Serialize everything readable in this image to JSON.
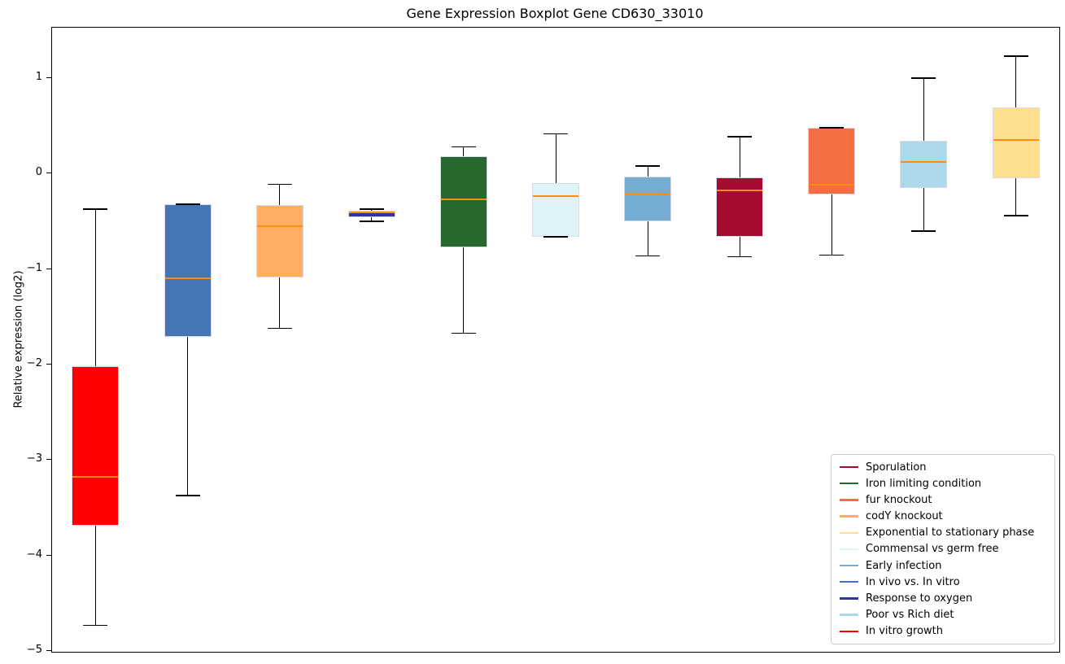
{
  "chart_data": {
    "type": "boxplot",
    "title": "Gene Expression Boxplot Gene CD630_33010",
    "xlabel": "",
    "ylabel": "Relative expression (log2)",
    "ylim": [
      -5.009,
      1.528
    ],
    "xlim": [
      0.527,
      11.473
    ],
    "yticks": [
      1,
      0,
      -1,
      -2,
      -3,
      -4,
      -5
    ],
    "xticks_visible": false,
    "grid": false,
    "box_width": 0.51,
    "cap_width": 0.26,
    "median_color": "#ff8c0e",
    "whisker_color": "#000000",
    "box_edge_color": "#d9d9e8",
    "series": [
      {
        "position": 1,
        "name": "In vitro growth",
        "color": "#ff0000",
        "whisker_low": -4.73,
        "q1": -3.69,
        "median": -3.18,
        "q3": -2.02,
        "whisker_high": -0.37
      },
      {
        "position": 2,
        "name": "In vivo vs. In vitro",
        "color": "#4575b4",
        "whisker_low": -3.37,
        "q1": -1.71,
        "median": -1.1,
        "q3": -0.32,
        "whisker_high": -0.32
      },
      {
        "position": 3,
        "name": "codY knockout",
        "color": "#fdae61",
        "whisker_low": -1.62,
        "q1": -1.09,
        "median": -0.55,
        "q3": -0.33,
        "whisker_high": -0.11
      },
      {
        "position": 4,
        "name": "Response to oxygen",
        "color": "#313695",
        "whisker_low": -0.5,
        "q1": -0.46,
        "median": -0.41,
        "q3": -0.39,
        "whisker_high": -0.37
      },
      {
        "position": 5,
        "name": "Iron limiting condition",
        "color": "#27682c",
        "whisker_low": -1.67,
        "q1": -0.77,
        "median": -0.27,
        "q3": 0.18,
        "whisker_high": 0.28
      },
      {
        "position": 6,
        "name": "Commensal vs germ free",
        "color": "#e0f3f8",
        "whisker_low": -0.66,
        "q1": -0.66,
        "median": -0.24,
        "q3": -0.1,
        "whisker_high": 0.42
      },
      {
        "position": 7,
        "name": "Early infection",
        "color": "#74add1",
        "whisker_low": -0.86,
        "q1": -0.5,
        "median": -0.21,
        "q3": -0.03,
        "whisker_high": 0.08
      },
      {
        "position": 8,
        "name": "Sporulation",
        "color": "#a50b2e",
        "whisker_low": -0.87,
        "q1": -0.66,
        "median": -0.18,
        "q3": -0.04,
        "whisker_high": 0.39
      },
      {
        "position": 9,
        "name": "fur knockout",
        "color": "#f46d43",
        "whisker_low": -0.85,
        "q1": -0.22,
        "median": -0.12,
        "q3": 0.48,
        "whisker_high": 0.48
      },
      {
        "position": 10,
        "name": "Poor vs Rich diet",
        "color": "#abd9e9",
        "whisker_low": -0.6,
        "q1": -0.15,
        "median": 0.12,
        "q3": 0.34,
        "whisker_high": 1.0
      },
      {
        "position": 11,
        "name": "Exponential to stationary phase",
        "color": "#fee090",
        "whisker_low": -0.44,
        "q1": -0.05,
        "median": 0.35,
        "q3": 0.69,
        "whisker_high": 1.23
      }
    ],
    "legend": {
      "position": "lower right",
      "entries": [
        {
          "label": "Sporulation",
          "color": "#a50b2e"
        },
        {
          "label": "Iron limiting condition",
          "color": "#27682c"
        },
        {
          "label": "fur knockout",
          "color": "#f46d43"
        },
        {
          "label": "codY knockout",
          "color": "#fdae61"
        },
        {
          "label": "Exponential to stationary phase",
          "color": "#fee090"
        },
        {
          "label": "Commensal vs germ free",
          "color": "#e0f3f8"
        },
        {
          "label": "Early infection",
          "color": "#74add1"
        },
        {
          "label": "In vivo vs. In vitro",
          "color": "#4575b4"
        },
        {
          "label": "Response to oxygen",
          "color": "#313695"
        },
        {
          "label": "Poor vs Rich diet",
          "color": "#abd9e9"
        },
        {
          "label": "In vitro growth",
          "color": "#ff0000"
        }
      ]
    }
  }
}
